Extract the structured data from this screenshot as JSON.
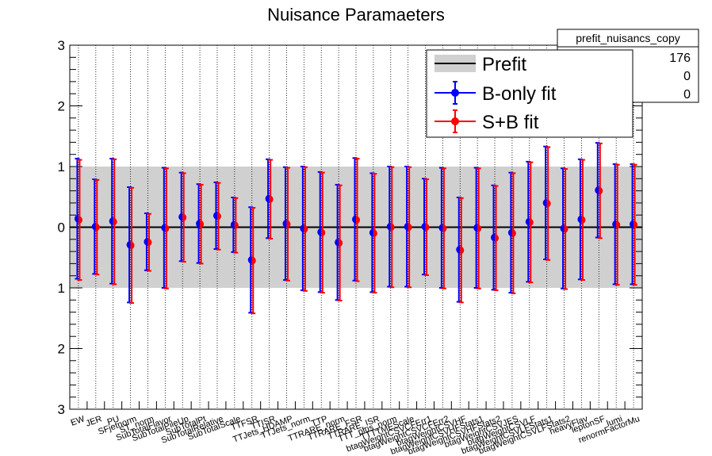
{
  "chart_data": {
    "type": "scatter",
    "title": "Nuisance Paramaeters",
    "xlabel": "",
    "ylabel": "",
    "ylim": [
      -3,
      3
    ],
    "yticks": [
      -3,
      -2,
      -1,
      0,
      1,
      2,
      3
    ],
    "ytick_labels": [
      "3",
      "2",
      "1",
      "0",
      "1",
      "2",
      "3"
    ],
    "prefit_band": [
      -1,
      1
    ],
    "grid": "vertical dotted lines at each parameter",
    "categories": [
      "EW",
      "JER",
      "PU",
      "SFjetnorm",
      "ST_norm",
      "SubTotalFlavor",
      "SubTotalPileUp",
      "SubTotalPt",
      "SubTotalRelative",
      "SubTotalScale",
      "TTFSR",
      "TTISR",
      "TTJets_HDAMP",
      "TTJets_norm",
      "TTP",
      "TTRARE_norm",
      "TTRARE_FSR",
      "TTRARE_ISR",
      "TTT_plus_norm",
      "TTTTMEScale",
      "btagWeightCSVCFErr1",
      "btagWeightCSVCFErr2",
      "btagWeightCSVHF",
      "btagWeightCSVHFStats1",
      "btagWeightCSVHFStats2",
      "btagWeightCSVJES",
      "btagWeightCSVLF",
      "btagWeightCSVLFStats1",
      "btagWeightCSVLFStats2",
      "heavyFlav",
      "leptonSF",
      "lumi",
      "renormFactorMu"
    ],
    "legend": {
      "placement": "top-right",
      "entries": [
        {
          "label": "Prefit",
          "color": "#000000",
          "style": "line"
        },
        {
          "label": "B-only fit",
          "color": "#0000ff",
          "style": "marker"
        },
        {
          "label": "S+B fit",
          "color": "#ff0000",
          "style": "marker"
        }
      ]
    },
    "stats_box": {
      "title": "prefit_nuisancs_copy",
      "values": [
        "176",
        "0",
        "0"
      ]
    },
    "series": [
      {
        "name": "B-only fit",
        "color": "#0000ff",
        "values": [
          0.14,
          0.01,
          0.1,
          -0.29,
          -0.24,
          -0.01,
          0.17,
          0.06,
          0.19,
          0.04,
          -0.54,
          0.47,
          0.06,
          -0.02,
          -0.08,
          -0.25,
          0.13,
          -0.09,
          0.01,
          0.01,
          0.01,
          -0.01,
          -0.37,
          -0.01,
          -0.17,
          -0.09,
          0.09,
          0.4,
          -0.02,
          0.13,
          0.61,
          0.05,
          0.05
        ],
        "errors": [
          0.99,
          0.78,
          1.03,
          0.95,
          0.47,
          0.99,
          0.73,
          0.65,
          0.55,
          0.45,
          0.87,
          0.65,
          0.93,
          1.02,
          0.99,
          0.95,
          1.01,
          0.98,
          0.99,
          0.99,
          0.79,
          0.99,
          0.86,
          0.99,
          0.86,
          0.99,
          0.99,
          0.93,
          0.99,
          0.99,
          0.78,
          0.99,
          0.99
        ]
      },
      {
        "name": "S+B fit",
        "color": "#ff0000",
        "values": [
          0.12,
          0.0,
          0.09,
          -0.3,
          -0.25,
          -0.02,
          0.16,
          0.05,
          0.18,
          0.03,
          -0.55,
          0.46,
          0.05,
          -0.03,
          -0.09,
          -0.26,
          0.12,
          -0.1,
          0.0,
          0.0,
          0.0,
          -0.02,
          -0.38,
          -0.02,
          -0.18,
          -0.1,
          0.08,
          0.39,
          -0.03,
          0.12,
          0.6,
          0.04,
          0.04
        ],
        "errors": [
          0.99,
          0.78,
          1.03,
          0.95,
          0.47,
          0.99,
          0.73,
          0.65,
          0.55,
          0.45,
          0.87,
          0.65,
          0.93,
          1.02,
          0.99,
          0.95,
          1.01,
          0.98,
          0.99,
          0.99,
          0.79,
          0.99,
          0.86,
          0.99,
          0.86,
          0.99,
          0.99,
          0.93,
          0.99,
          0.99,
          0.78,
          0.99,
          0.99
        ]
      }
    ]
  }
}
